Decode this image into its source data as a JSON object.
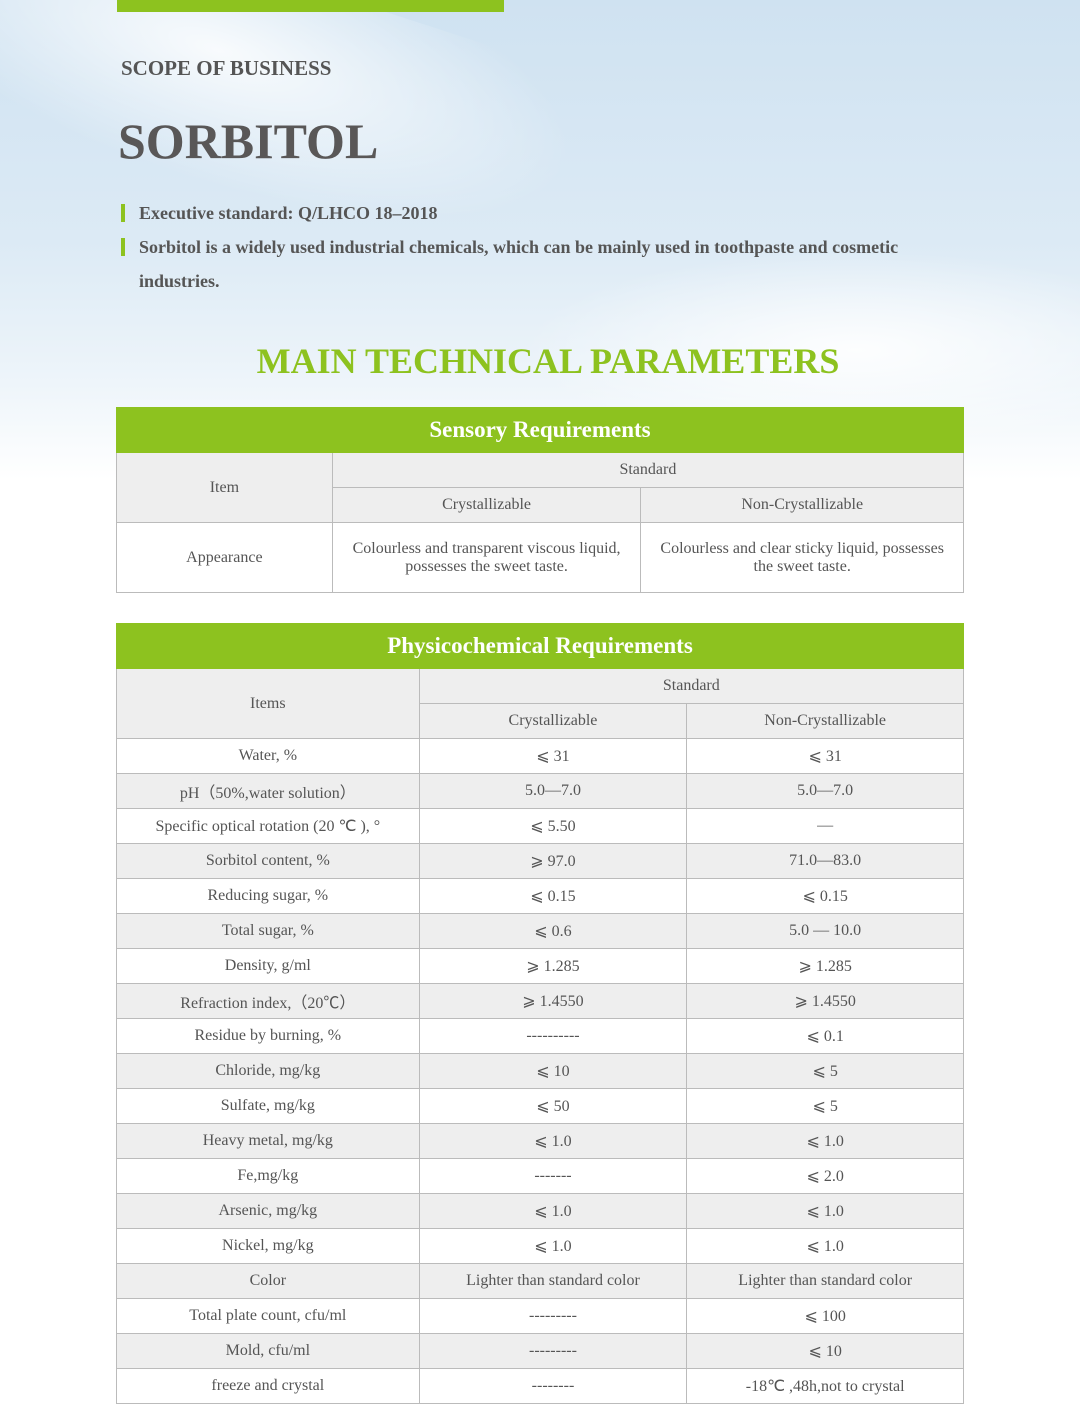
{
  "header": {
    "section_label": "SCOPE OF BUSINESS",
    "product": "SORBITOL",
    "bullets": [
      "Executive standard: Q/LHCO 18–2018",
      "Sorbitol is a widely used industrial chemicals, which can be mainly used in toothpaste and cosmetic industries."
    ]
  },
  "main_title": "MAIN TECHNICAL PARAMETERS",
  "colors": {
    "accent": "#8dc21f",
    "stripe": "#eeeeee"
  },
  "sensory": {
    "title": "Sensory Requirements",
    "item": "Item",
    "standard": "Standard",
    "col1": "Crystallizable",
    "col2": "Non-Crystallizable",
    "rows": [
      {
        "item": "Appearance",
        "c": "Colourless and transparent viscous liquid, possesses the sweet taste.",
        "n": "Colourless and clear sticky liquid, possesses the sweet taste."
      }
    ]
  },
  "physico": {
    "title": "Physicochemical Requirements",
    "item": "Items",
    "standard": "Standard",
    "col1": "Crystallizable",
    "col2": "Non-Crystallizable",
    "rows": [
      {
        "item": "Water, %",
        "c": "⩽ 31",
        "n": "⩽ 31"
      },
      {
        "item": "pH（50%,water solution）",
        "c": "5.0—7.0",
        "n": "5.0—7.0"
      },
      {
        "item": "Specific optical rotation (20 ℃ ), °",
        "c": "⩽ 5.50",
        "n": "—"
      },
      {
        "item": "Sorbitol content, %",
        "c": "⩾ 97.0",
        "n": "71.0—83.0"
      },
      {
        "item": "Reducing sugar, %",
        "c": "⩽ 0.15",
        "n": "⩽ 0.15"
      },
      {
        "item": "Total sugar, %",
        "c": "⩽ 0.6",
        "n": "5.0 — 10.0"
      },
      {
        "item": "Density, g/ml",
        "c": "⩾ 1.285",
        "n": "⩾ 1.285"
      },
      {
        "item": "Refraction index,（20℃）",
        "c": "⩾ 1.4550",
        "n": "⩾ 1.4550"
      },
      {
        "item": "Residue by burning, %",
        "c": "----------",
        "n": "⩽ 0.1"
      },
      {
        "item": "Chloride, mg/kg",
        "c": "⩽ 10",
        "n": "⩽ 5"
      },
      {
        "item": "Sulfate, mg/kg",
        "c": "⩽ 50",
        "n": "⩽ 5"
      },
      {
        "item": "Heavy metal, mg/kg",
        "c": "⩽ 1.0",
        "n": "⩽ 1.0"
      },
      {
        "item": "Fe,mg/kg",
        "c": "-------",
        "n": "⩽ 2.0"
      },
      {
        "item": "Arsenic, mg/kg",
        "c": "⩽ 1.0",
        "n": "⩽ 1.0"
      },
      {
        "item": "Nickel, mg/kg",
        "c": "⩽ 1.0",
        "n": "⩽ 1.0"
      },
      {
        "item": "Color",
        "c": "Lighter than standard color",
        "n": "Lighter than standard color"
      },
      {
        "item": "Total plate count, cfu/ml",
        "c": "---------",
        "n": "⩽ 100"
      },
      {
        "item": "Mold, cfu/ml",
        "c": "---------",
        "n": "⩽ 10"
      },
      {
        "item": "freeze and crystal",
        "c": "--------",
        "n": "-18℃ ,48h,not to crystal"
      }
    ]
  }
}
